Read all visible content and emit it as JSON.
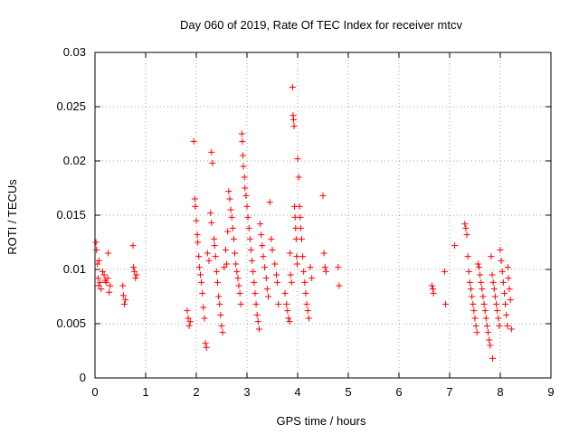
{
  "chart_data": {
    "type": "scatter",
    "title": "Day 060 of 2019, Rate Of TEC Index for receiver mtcv",
    "xlabel": "GPS time / hours",
    "ylabel": "ROTI / TECUs",
    "xlim": [
      0,
      9
    ],
    "ylim": [
      0,
      0.03
    ],
    "x_ticks": [
      "0",
      "1",
      "2",
      "3",
      "4",
      "5",
      "6",
      "7",
      "8",
      "9"
    ],
    "y_ticks": [
      "0",
      "0.005",
      "0.01",
      "0.015",
      "0.02",
      "0.025",
      "0.03"
    ],
    "grid": true,
    "marker": "+",
    "color": "#ff0000",
    "series": [
      {
        "name": "ROTI",
        "points": [
          [
            0.02,
            0.0125
          ],
          [
            0.03,
            0.0118
          ],
          [
            0.05,
            0.0105
          ],
          [
            0.06,
            0.0092
          ],
          [
            0.07,
            0.0085
          ],
          [
            0.08,
            0.0108
          ],
          [
            0.1,
            0.0088
          ],
          [
            0.12,
            0.0082
          ],
          [
            0.15,
            0.0098
          ],
          [
            0.18,
            0.0095
          ],
          [
            0.2,
            0.009
          ],
          [
            0.22,
            0.0088
          ],
          [
            0.25,
            0.0092
          ],
          [
            0.26,
            0.0115
          ],
          [
            0.28,
            0.0079
          ],
          [
            0.3,
            0.0085
          ],
          [
            0.55,
            0.0085
          ],
          [
            0.56,
            0.0076
          ],
          [
            0.58,
            0.0068
          ],
          [
            0.6,
            0.0072
          ],
          [
            0.75,
            0.0122
          ],
          [
            0.76,
            0.0102
          ],
          [
            0.78,
            0.0098
          ],
          [
            0.8,
            0.0092
          ],
          [
            0.82,
            0.0095
          ],
          [
            1.82,
            0.0062
          ],
          [
            1.84,
            0.0055
          ],
          [
            1.86,
            0.0048
          ],
          [
            1.88,
            0.0052
          ],
          [
            1.95,
            0.0218
          ],
          [
            1.97,
            0.0165
          ],
          [
            1.98,
            0.0158
          ],
          [
            2.0,
            0.0145
          ],
          [
            2.02,
            0.0132
          ],
          [
            2.03,
            0.0125
          ],
          [
            2.05,
            0.0112
          ],
          [
            2.06,
            0.0102
          ],
          [
            2.08,
            0.0095
          ],
          [
            2.1,
            0.0088
          ],
          [
            2.12,
            0.0078
          ],
          [
            2.14,
            0.0065
          ],
          [
            2.16,
            0.0055
          ],
          [
            2.18,
            0.0032
          ],
          [
            2.2,
            0.0028
          ],
          [
            2.22,
            0.0115
          ],
          [
            2.25,
            0.0108
          ],
          [
            2.28,
            0.0152
          ],
          [
            2.3,
            0.0143
          ],
          [
            2.3,
            0.0208
          ],
          [
            2.32,
            0.0198
          ],
          [
            2.35,
            0.0128
          ],
          [
            2.36,
            0.0122
          ],
          [
            2.38,
            0.0112
          ],
          [
            2.4,
            0.0098
          ],
          [
            2.42,
            0.0088
          ],
          [
            2.44,
            0.0075
          ],
          [
            2.46,
            0.0068
          ],
          [
            2.48,
            0.0058
          ],
          [
            2.5,
            0.0048
          ],
          [
            2.52,
            0.0042
          ],
          [
            2.55,
            0.0102
          ],
          [
            2.58,
            0.0118
          ],
          [
            2.6,
            0.0105
          ],
          [
            2.62,
            0.0135
          ],
          [
            2.64,
            0.0172
          ],
          [
            2.66,
            0.0165
          ],
          [
            2.68,
            0.0155
          ],
          [
            2.7,
            0.0148
          ],
          [
            2.72,
            0.0138
          ],
          [
            2.74,
            0.0128
          ],
          [
            2.76,
            0.0115
          ],
          [
            2.78,
            0.0105
          ],
          [
            2.8,
            0.0098
          ],
          [
            2.82,
            0.0092
          ],
          [
            2.84,
            0.0085
          ],
          [
            2.86,
            0.0078
          ],
          [
            2.88,
            0.0068
          ],
          [
            2.9,
            0.0225
          ],
          [
            2.91,
            0.0218
          ],
          [
            2.92,
            0.0205
          ],
          [
            2.93,
            0.0195
          ],
          [
            2.95,
            0.0185
          ],
          [
            2.96,
            0.0175
          ],
          [
            2.98,
            0.0168
          ],
          [
            3.0,
            0.0158
          ],
          [
            3.02,
            0.0148
          ],
          [
            3.04,
            0.0138
          ],
          [
            3.06,
            0.0128
          ],
          [
            3.08,
            0.0118
          ],
          [
            3.1,
            0.0108
          ],
          [
            3.12,
            0.0098
          ],
          [
            3.14,
            0.0088
          ],
          [
            3.16,
            0.0078
          ],
          [
            3.18,
            0.0068
          ],
          [
            3.2,
            0.0058
          ],
          [
            3.22,
            0.0052
          ],
          [
            3.24,
            0.0045
          ],
          [
            3.26,
            0.0142
          ],
          [
            3.28,
            0.0132
          ],
          [
            3.3,
            0.0122
          ],
          [
            3.32,
            0.0112
          ],
          [
            3.35,
            0.0102
          ],
          [
            3.38,
            0.0092
          ],
          [
            3.4,
            0.0082
          ],
          [
            3.42,
            0.0075
          ],
          [
            3.45,
            0.0162
          ],
          [
            3.48,
            0.0128
          ],
          [
            3.5,
            0.0118
          ],
          [
            3.55,
            0.0105
          ],
          [
            3.58,
            0.0095
          ],
          [
            3.6,
            0.0088
          ],
          [
            3.62,
            0.0068
          ],
          [
            3.75,
            0.0078
          ],
          [
            3.78,
            0.0068
          ],
          [
            3.8,
            0.0062
          ],
          [
            3.82,
            0.0055
          ],
          [
            3.84,
            0.0052
          ],
          [
            3.85,
            0.0115
          ],
          [
            3.86,
            0.0095
          ],
          [
            3.88,
            0.0088
          ],
          [
            3.9,
            0.0268
          ],
          [
            3.91,
            0.0242
          ],
          [
            3.92,
            0.0238
          ],
          [
            3.93,
            0.0232
          ],
          [
            3.94,
            0.0158
          ],
          [
            3.95,
            0.0148
          ],
          [
            3.96,
            0.0138
          ],
          [
            3.97,
            0.0128
          ],
          [
            3.98,
            0.0112
          ],
          [
            3.99,
            0.0105
          ],
          [
            4.0,
            0.0202
          ],
          [
            4.02,
            0.0185
          ],
          [
            4.04,
            0.0158
          ],
          [
            4.05,
            0.0148
          ],
          [
            4.06,
            0.0138
          ],
          [
            4.08,
            0.0128
          ],
          [
            4.1,
            0.0112
          ],
          [
            4.12,
            0.0098
          ],
          [
            4.14,
            0.0088
          ],
          [
            4.16,
            0.0078
          ],
          [
            4.18,
            0.0068
          ],
          [
            4.2,
            0.0062
          ],
          [
            4.22,
            0.0055
          ],
          [
            4.25,
            0.0102
          ],
          [
            4.28,
            0.0092
          ],
          [
            4.5,
            0.0168
          ],
          [
            4.52,
            0.0115
          ],
          [
            4.54,
            0.0102
          ],
          [
            4.56,
            0.0098
          ],
          [
            4.8,
            0.0102
          ],
          [
            4.82,
            0.0085
          ],
          [
            6.65,
            0.0085
          ],
          [
            6.67,
            0.0082
          ],
          [
            6.68,
            0.0078
          ],
          [
            6.9,
            0.0098
          ],
          [
            6.92,
            0.0068
          ],
          [
            7.1,
            0.0122
          ],
          [
            7.3,
            0.0142
          ],
          [
            7.32,
            0.0138
          ],
          [
            7.34,
            0.0132
          ],
          [
            7.36,
            0.0112
          ],
          [
            7.38,
            0.0098
          ],
          [
            7.4,
            0.0088
          ],
          [
            7.42,
            0.0082
          ],
          [
            7.44,
            0.0075
          ],
          [
            7.46,
            0.0068
          ],
          [
            7.48,
            0.0062
          ],
          [
            7.5,
            0.0055
          ],
          [
            7.52,
            0.0048
          ],
          [
            7.54,
            0.0042
          ],
          [
            7.56,
            0.0105
          ],
          [
            7.58,
            0.0102
          ],
          [
            7.6,
            0.0095
          ],
          [
            7.62,
            0.0088
          ],
          [
            7.64,
            0.0082
          ],
          [
            7.66,
            0.0075
          ],
          [
            7.68,
            0.0068
          ],
          [
            7.7,
            0.0062
          ],
          [
            7.72,
            0.0055
          ],
          [
            7.74,
            0.0048
          ],
          [
            7.76,
            0.0042
          ],
          [
            7.78,
            0.0035
          ],
          [
            7.8,
            0.003
          ],
          [
            7.82,
            0.0112
          ],
          [
            7.84,
            0.0095
          ],
          [
            7.86,
            0.0088
          ],
          [
            7.88,
            0.0082
          ],
          [
            7.9,
            0.0075
          ],
          [
            7.92,
            0.0068
          ],
          [
            7.94,
            0.0062
          ],
          [
            7.96,
            0.0055
          ],
          [
            7.98,
            0.0048
          ],
          [
            8.0,
            0.0118
          ],
          [
            8.02,
            0.0108
          ],
          [
            8.04,
            0.0098
          ],
          [
            8.06,
            0.0088
          ],
          [
            8.08,
            0.0078
          ],
          [
            8.1,
            0.0068
          ],
          [
            8.12,
            0.0058
          ],
          [
            8.14,
            0.0048
          ],
          [
            7.85,
            0.0018
          ],
          [
            8.15,
            0.0102
          ],
          [
            8.16,
            0.0092
          ],
          [
            8.18,
            0.0082
          ],
          [
            8.2,
            0.0072
          ],
          [
            8.22,
            0.0045
          ]
        ]
      }
    ]
  }
}
